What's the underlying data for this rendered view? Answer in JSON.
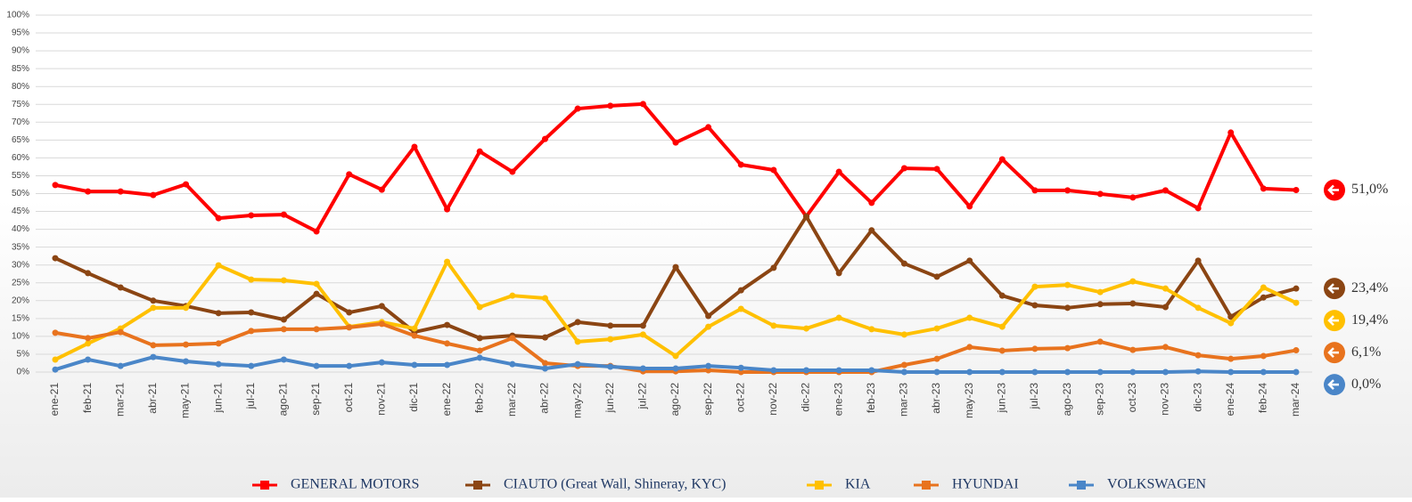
{
  "chart_data": {
    "type": "line",
    "categories": [
      "ene-21",
      "feb-21",
      "mar-21",
      "abr-21",
      "may-21",
      "jun-21",
      "jul-21",
      "ago-21",
      "sep-21",
      "oct-21",
      "nov-21",
      "dic-21",
      "ene-22",
      "feb-22",
      "mar-22",
      "abr-22",
      "may-22",
      "jun-22",
      "jul-22",
      "ago-22",
      "sep-22",
      "oct-22",
      "nov-22",
      "dic-22",
      "ene-23",
      "feb-23",
      "mar-23",
      "abr-23",
      "may-23",
      "jun-23",
      "jul-23",
      "ago-23",
      "sep-23",
      "oct-23",
      "nov-23",
      "dic-23",
      "ene-24",
      "feb-24",
      "mar-24"
    ],
    "series": [
      {
        "name": "GENERAL MOTORS",
        "color": "#ff0000",
        "end_label": "51,0%",
        "values": [
          52.4,
          50.6,
          50.6,
          49.6,
          52.6,
          43.1,
          43.9,
          44.1,
          39.4,
          55.4,
          51.1,
          63.1,
          45.6,
          61.8,
          56.1,
          65.3,
          73.8,
          74.6,
          75.1,
          64.3,
          68.6,
          58.1,
          56.6,
          43.6,
          56.1,
          47.4,
          57.1,
          56.9,
          46.4,
          59.6,
          50.9,
          50.9,
          49.9,
          48.9,
          50.9,
          45.9,
          67.1,
          51.4,
          51.0
        ]
      },
      {
        "name": "CIAUTO (Great Wall, Shineray, KYC)",
        "color": "#8b4513",
        "end_label": "23,4%",
        "values": [
          31.9,
          27.7,
          23.7,
          20.0,
          18.5,
          16.5,
          16.7,
          14.7,
          21.9,
          16.7,
          18.5,
          11.2,
          13.2,
          9.5,
          10.2,
          9.7,
          14.0,
          13.0,
          13.0,
          29.4,
          15.7,
          22.9,
          29.2,
          43.6,
          27.7,
          39.7,
          30.4,
          26.7,
          31.2,
          21.4,
          18.7,
          18.0,
          19.0,
          19.2,
          18.2,
          31.2,
          15.5,
          20.9,
          23.4
        ]
      },
      {
        "name": "KIA",
        "color": "#ffc000",
        "end_label": "19,4%",
        "values": [
          3.5,
          8.0,
          12.2,
          18.0,
          18.0,
          29.9,
          25.9,
          25.7,
          24.7,
          12.7,
          14.0,
          12.2,
          30.9,
          18.2,
          21.4,
          20.7,
          8.5,
          9.2,
          10.5,
          4.5,
          12.7,
          17.7,
          13.0,
          12.2,
          15.2,
          12.0,
          10.5,
          12.2,
          15.2,
          12.7,
          23.9,
          24.4,
          22.4,
          25.4,
          23.4,
          18.0,
          13.7,
          23.7,
          19.4
        ]
      },
      {
        "name": "HYUNDAI",
        "color": "#e8731e",
        "end_label": "6,1%",
        "values": [
          11.0,
          9.5,
          11.2,
          7.5,
          7.7,
          8.0,
          11.5,
          12.0,
          12.0,
          12.5,
          13.5,
          10.2,
          8.0,
          6.0,
          9.5,
          2.5,
          1.7,
          1.7,
          0.2,
          0.2,
          0.5,
          0,
          0,
          0,
          0,
          0,
          2.0,
          3.7,
          7.0,
          6.0,
          6.5,
          6.7,
          8.5,
          6.2,
          7.0,
          4.7,
          3.7,
          4.5,
          6.1
        ]
      },
      {
        "name": "VOLKSWAGEN",
        "color": "#4a86c8",
        "end_label": "0,0%",
        "values": [
          0.7,
          3.5,
          1.7,
          4.2,
          3.0,
          2.2,
          1.7,
          3.5,
          1.7,
          1.7,
          2.7,
          2.0,
          2.0,
          4.0,
          2.2,
          1.0,
          2.2,
          1.5,
          1.0,
          1.0,
          1.7,
          1.2,
          0.5,
          0.5,
          0.5,
          0.5,
          0,
          0,
          0,
          0,
          0,
          0,
          0,
          0,
          0,
          0.2,
          0,
          0,
          0.0
        ]
      }
    ],
    "ylim": [
      0,
      100
    ],
    "yticks": [
      {
        "value": 0,
        "label": "0%"
      },
      {
        "value": 5,
        "label": "5%"
      },
      {
        "value": 10,
        "label": "10%"
      },
      {
        "value": 15,
        "label": "15%"
      },
      {
        "value": 20,
        "label": "20%"
      },
      {
        "value": 25,
        "label": "25%"
      },
      {
        "value": 30,
        "label": "30%"
      },
      {
        "value": 35,
        "label": "35%"
      },
      {
        "value": 40,
        "label": "40%"
      },
      {
        "value": 45,
        "label": "45%"
      },
      {
        "value": 50,
        "label": "50%"
      },
      {
        "value": 55,
        "label": "55%"
      },
      {
        "value": 60,
        "label": "60%"
      },
      {
        "value": 65,
        "label": "65%"
      },
      {
        "value": 70,
        "label": "70%"
      },
      {
        "value": 75,
        "label": "75%"
      },
      {
        "value": 80,
        "label": "80%"
      },
      {
        "value": 85,
        "label": "85%"
      },
      {
        "value": 90,
        "label": "90%"
      },
      {
        "value": 95,
        "label": "95%"
      },
      {
        "value": 100,
        "label": "100%"
      }
    ],
    "grid": true,
    "legend": "bottom"
  }
}
